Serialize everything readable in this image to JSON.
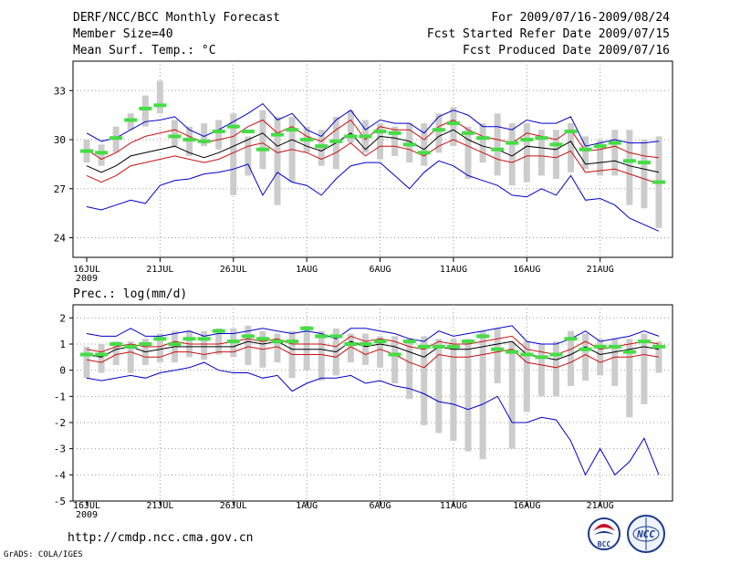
{
  "header": {
    "title": "DERF/NCC/BCC Monthly Forecast",
    "member_size": "Member Size=40",
    "temp_label": "Mean Surf. Temp.: °C",
    "forecast_range": "For 2009/07/16-2009/08/24",
    "start_date": "Fcst Started Refer Date 2009/07/15",
    "produced_date": "Fcst Produced Date 2009/07/16"
  },
  "footer": {
    "url": "http://cmdp.ncc.cma.gov.cn",
    "grads_credit": "GrADS: COLA/IGES",
    "logo_bcc": "BCC",
    "logo_ncc": "NCC"
  },
  "colors": {
    "bar": "#cccccc",
    "marker": "#44dd44",
    "mean": "#000000",
    "spread": "#cc1111",
    "envelope": "#0000cc",
    "grid": "#999999"
  },
  "chart_data": [
    {
      "type": "line",
      "title": "Mean Surf. Temp.: °C",
      "x_labels": [
        "16JUL",
        "21JUL",
        "26JUL",
        "1AUG",
        "6AUG",
        "11AUG",
        "16AUG",
        "21AUG"
      ],
      "x_sublabel": "2009",
      "x_range": [
        1,
        40
      ],
      "ylim": [
        22.8,
        34.8
      ],
      "yticks": [
        24,
        27,
        30,
        33
      ],
      "grid": true,
      "series": [
        {
          "name": "max",
          "values": [
            30.4,
            29.9,
            30.1,
            30.6,
            31.1,
            31.2,
            31.4,
            30.6,
            30.2,
            30.6,
            31.1,
            31.6,
            32.2,
            31.2,
            31.6,
            30.6,
            30.2,
            31.2,
            31.8,
            30.6,
            31.2,
            31.0,
            31.0,
            30.4,
            31.4,
            31.8,
            31.5,
            30.8,
            30.8,
            30.6,
            31.2,
            31.0,
            31.0,
            31.4,
            29.6,
            29.8,
            30.0,
            29.8,
            29.8,
            29.9
          ]
        },
        {
          "name": "upper",
          "values": [
            29.4,
            28.8,
            29.2,
            29.8,
            30.2,
            30.4,
            30.6,
            30.2,
            29.8,
            30.0,
            30.2,
            30.8,
            31.2,
            30.4,
            30.8,
            30.2,
            29.9,
            30.6,
            31.2,
            30.0,
            30.8,
            30.6,
            30.6,
            30.0,
            30.8,
            31.2,
            30.6,
            30.2,
            30.0,
            29.8,
            30.4,
            30.2,
            30.0,
            30.6,
            29.3,
            29.4,
            29.6,
            29.2,
            29.0,
            28.9
          ]
        },
        {
          "name": "mean",
          "values": [
            28.4,
            28.0,
            28.4,
            29.0,
            29.2,
            29.4,
            29.6,
            29.2,
            28.9,
            29.2,
            29.6,
            30.0,
            30.4,
            29.6,
            30.0,
            29.6,
            29.3,
            29.8,
            30.4,
            29.4,
            30.2,
            30.1,
            29.9,
            29.4,
            30.2,
            30.6,
            30.0,
            29.6,
            29.4,
            29.0,
            29.6,
            29.5,
            29.4,
            29.9,
            28.5,
            28.6,
            28.7,
            28.4,
            28.2,
            28.0
          ]
        },
        {
          "name": "lower",
          "values": [
            27.8,
            27.4,
            27.8,
            28.4,
            28.6,
            28.8,
            29.0,
            28.8,
            28.6,
            28.8,
            29.2,
            29.6,
            29.8,
            29.2,
            29.4,
            29.2,
            28.8,
            29.2,
            29.8,
            29.0,
            29.6,
            29.6,
            29.4,
            29.0,
            29.6,
            30.0,
            29.6,
            29.2,
            28.8,
            28.6,
            29.0,
            29.0,
            28.9,
            29.3,
            28.0,
            28.1,
            28.2,
            27.9,
            27.6,
            27.3
          ]
        },
        {
          "name": "min",
          "values": [
            25.9,
            25.7,
            26.0,
            26.3,
            26.1,
            27.2,
            27.5,
            27.6,
            27.9,
            28.0,
            28.2,
            28.5,
            26.6,
            28.0,
            27.4,
            27.2,
            26.6,
            27.6,
            28.4,
            28.6,
            28.6,
            27.8,
            27.0,
            28.0,
            28.7,
            28.4,
            27.8,
            27.5,
            27.2,
            26.6,
            26.5,
            27.0,
            26.6,
            27.8,
            26.3,
            26.4,
            26.0,
            25.2,
            24.8,
            24.4
          ]
        }
      ],
      "bars": [
        {
          "low": 28.6,
          "high": 30.0
        },
        {
          "low": 28.4,
          "high": 29.7
        },
        {
          "low": 29.2,
          "high": 30.8
        },
        {
          "low": 30.6,
          "high": 31.6
        },
        {
          "low": 30.8,
          "high": 32.7
        },
        {
          "low": 31.6,
          "high": 33.6
        },
        {
          "low": 29.6,
          "high": 31.2
        },
        {
          "low": 29.0,
          "high": 30.8
        },
        {
          "low": 29.6,
          "high": 31.0
        },
        {
          "low": 29.4,
          "high": 31.2
        },
        {
          "low": 26.6,
          "high": 31.6
        },
        {
          "low": 27.8,
          "high": 30.2
        },
        {
          "low": 28.2,
          "high": 31.8
        },
        {
          "low": 26.0,
          "high": 31.4
        },
        {
          "low": 27.4,
          "high": 31.4
        },
        {
          "low": 29.2,
          "high": 30.8
        },
        {
          "low": 28.4,
          "high": 30.6
        },
        {
          "low": 28.2,
          "high": 31.4
        },
        {
          "low": 29.8,
          "high": 31.8
        },
        {
          "low": 29.2,
          "high": 31.2
        },
        {
          "low": 28.8,
          "high": 31.0
        },
        {
          "low": 29.0,
          "high": 30.8
        },
        {
          "low": 28.6,
          "high": 31.0
        },
        {
          "low": 28.4,
          "high": 31.0
        },
        {
          "low": 29.2,
          "high": 31.6
        },
        {
          "low": 29.6,
          "high": 32.0
        },
        {
          "low": 27.6,
          "high": 30.8
        },
        {
          "low": 28.6,
          "high": 31.0
        },
        {
          "low": 27.8,
          "high": 31.6
        },
        {
          "low": 27.2,
          "high": 31.0
        },
        {
          "low": 27.4,
          "high": 31.0
        },
        {
          "low": 27.8,
          "high": 30.6
        },
        {
          "low": 27.6,
          "high": 30.6
        },
        {
          "low": 28.0,
          "high": 31.0
        },
        {
          "low": 28.2,
          "high": 30.2
        },
        {
          "low": 27.8,
          "high": 30.0
        },
        {
          "low": 27.8,
          "high": 30.6
        },
        {
          "low": 26.0,
          "high": 30.6
        },
        {
          "low": 25.8,
          "high": 30.0
        },
        {
          "low": 24.6,
          "high": 30.2
        }
      ],
      "markers": [
        29.3,
        29.2,
        30.1,
        31.2,
        31.9,
        32.1,
        30.2,
        30.0,
        29.9,
        30.5,
        30.8,
        30.5,
        29.4,
        30.3,
        30.6,
        30.0,
        29.6,
        29.9,
        30.2,
        30.2,
        30.5,
        30.4,
        29.7,
        29.2,
        30.6,
        31.0,
        30.4,
        30.1,
        29.4,
        29.8,
        30.0,
        30.1,
        29.7,
        30.5,
        29.4,
        29.6,
        29.8,
        28.7,
        28.6,
        27.4
      ]
    },
    {
      "type": "line",
      "title": "Prec.: log(mm/d)",
      "x_labels": [
        "16JUL",
        "21JUL",
        "26JUL",
        "1AUG",
        "6AUG",
        "11AUG",
        "16AUG",
        "21AUG"
      ],
      "x_sublabel": "2009",
      "x_range": [
        1,
        40
      ],
      "ylim": [
        -5,
        2.5
      ],
      "yticks": [
        -5,
        -4,
        -3,
        -2,
        -1,
        0,
        1,
        2
      ],
      "grid": true,
      "series": [
        {
          "name": "max",
          "values": [
            1.4,
            1.3,
            1.3,
            1.6,
            1.3,
            1.3,
            1.4,
            1.5,
            1.3,
            1.4,
            1.4,
            1.5,
            1.6,
            1.5,
            1.4,
            1.5,
            1.4,
            1.2,
            1.6,
            1.6,
            1.5,
            1.4,
            1.2,
            1.1,
            1.5,
            1.3,
            1.4,
            1.5,
            1.6,
            1.7,
            1.1,
            1.0,
            1.0,
            1.2,
            1.5,
            1.1,
            1.2,
            1.3,
            1.5,
            1.3
          ]
        },
        {
          "name": "upper",
          "values": [
            0.8,
            0.7,
            0.9,
            1.0,
            0.9,
            0.9,
            1.1,
            1.0,
            1.0,
            1.0,
            1.1,
            1.2,
            1.1,
            1.2,
            1.0,
            1.0,
            1.0,
            0.9,
            1.3,
            1.1,
            1.2,
            1.1,
            0.9,
            0.8,
            1.1,
            1.0,
            1.0,
            1.1,
            1.2,
            1.3,
            0.8,
            0.7,
            0.6,
            0.8,
            1.1,
            0.8,
            0.9,
            1.0,
            1.1,
            1.0
          ]
        },
        {
          "name": "mean",
          "values": [
            0.6,
            0.5,
            0.8,
            0.9,
            0.7,
            0.8,
            0.9,
            0.9,
            0.9,
            0.9,
            0.9,
            1.1,
            1.0,
            1.1,
            0.8,
            0.8,
            0.8,
            0.7,
            1.1,
            0.9,
            1.0,
            0.9,
            0.7,
            0.5,
            0.9,
            0.8,
            0.8,
            0.9,
            1.0,
            1.1,
            0.6,
            0.5,
            0.4,
            0.6,
            0.9,
            0.6,
            0.7,
            0.8,
            0.9,
            0.8
          ]
        },
        {
          "name": "lower",
          "values": [
            0.4,
            0.3,
            0.6,
            0.7,
            0.5,
            0.5,
            0.7,
            0.7,
            0.6,
            0.7,
            0.7,
            0.9,
            0.8,
            0.9,
            0.6,
            0.6,
            0.6,
            0.5,
            0.9,
            0.6,
            0.8,
            0.6,
            0.3,
            0.1,
            0.6,
            0.5,
            0.5,
            0.6,
            0.7,
            0.8,
            0.3,
            0.2,
            0.1,
            0.3,
            0.6,
            0.3,
            0.5,
            0.5,
            0.6,
            0.5
          ]
        },
        {
          "name": "min",
          "values": [
            -0.3,
            -0.4,
            -0.3,
            -0.2,
            -0.3,
            -0.1,
            0.0,
            0.1,
            0.3,
            0.0,
            -0.1,
            -0.1,
            -0.3,
            -0.2,
            -0.8,
            -0.5,
            -0.3,
            -0.3,
            -0.2,
            -0.5,
            -0.4,
            -0.6,
            -0.7,
            -0.9,
            -1.2,
            -1.3,
            -1.5,
            -1.3,
            -1.0,
            -2.0,
            -2.0,
            -1.8,
            -1.9,
            -2.7,
            -4.0,
            -3.0,
            -4.0,
            -3.5,
            -2.6,
            -4.0
          ]
        }
      ],
      "bars": [
        {
          "low": -0.3,
          "high": 0.9
        },
        {
          "low": -0.1,
          "high": 1.0
        },
        {
          "low": 0.2,
          "high": 1.1
        },
        {
          "low": -0.1,
          "high": 1.1
        },
        {
          "low": 0.2,
          "high": 1.2
        },
        {
          "low": 0.3,
          "high": 1.4
        },
        {
          "low": 0.3,
          "high": 1.5
        },
        {
          "low": 0.5,
          "high": 1.5
        },
        {
          "low": 0.4,
          "high": 1.5
        },
        {
          "low": 0.6,
          "high": 1.6
        },
        {
          "low": 0.5,
          "high": 1.6
        },
        {
          "low": 0.2,
          "high": 1.7
        },
        {
          "low": 0.1,
          "high": 1.5
        },
        {
          "low": 0.3,
          "high": 1.4
        },
        {
          "low": -0.3,
          "high": 1.5
        },
        {
          "low": 0.0,
          "high": 1.7
        },
        {
          "low": -0.4,
          "high": 1.5
        },
        {
          "low": -0.2,
          "high": 1.6
        },
        {
          "low": 0.3,
          "high": 1.4
        },
        {
          "low": 0.2,
          "high": 1.4
        },
        {
          "low": 0.1,
          "high": 1.3
        },
        {
          "low": -0.5,
          "high": 1.3
        },
        {
          "low": -1.1,
          "high": 1.2
        },
        {
          "low": -2.1,
          "high": 1.3
        },
        {
          "low": -2.4,
          "high": 1.2
        },
        {
          "low": -2.7,
          "high": 1.2
        },
        {
          "low": -3.1,
          "high": 1.2
        },
        {
          "low": -3.4,
          "high": 1.5
        },
        {
          "low": -0.5,
          "high": 1.6
        },
        {
          "low": -3.0,
          "high": 1.1
        },
        {
          "low": -1.6,
          "high": 1.1
        },
        {
          "low": -1.0,
          "high": 1.0
        },
        {
          "low": -1.0,
          "high": 1.1
        },
        {
          "low": -0.6,
          "high": 1.5
        },
        {
          "low": -0.4,
          "high": 1.4
        },
        {
          "low": -0.2,
          "high": 1.2
        },
        {
          "low": -0.6,
          "high": 1.2
        },
        {
          "low": -1.8,
          "high": 1.2
        },
        {
          "low": -1.3,
          "high": 1.4
        },
        {
          "low": -0.1,
          "high": 1.1
        }
      ],
      "markers": [
        0.6,
        0.6,
        1.0,
        0.9,
        1.0,
        1.2,
        1.0,
        1.2,
        1.2,
        1.5,
        1.1,
        1.3,
        1.2,
        1.1,
        1.1,
        1.6,
        1.3,
        1.3,
        1.0,
        1.0,
        1.1,
        0.6,
        1.1,
        0.9,
        0.9,
        0.9,
        1.1,
        1.3,
        0.8,
        0.7,
        0.6,
        0.5,
        0.6,
        1.2,
        0.8,
        0.9,
        0.9,
        0.7,
        1.1,
        0.9
      ]
    }
  ]
}
